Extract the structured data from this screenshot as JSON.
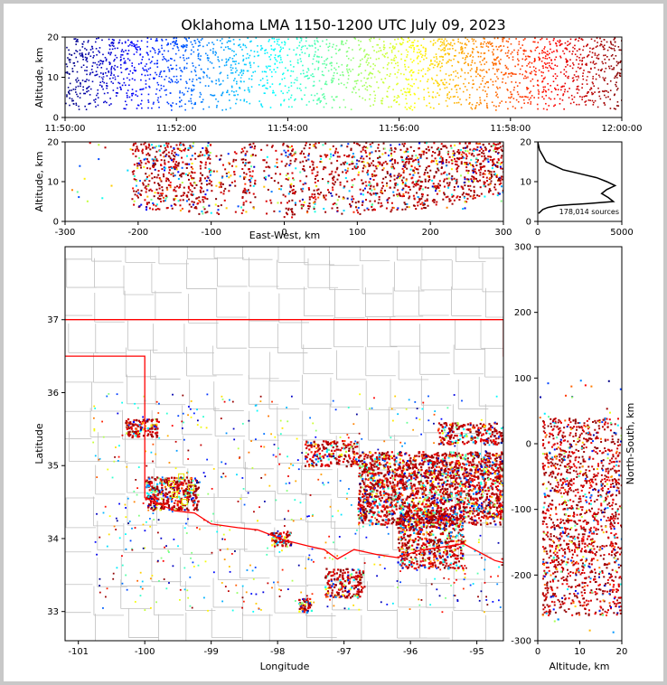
{
  "chart_data": {
    "type": "scatter",
    "title": "Oklahoma LMA 1150-1200 UTC July 09, 2023",
    "colors": {
      "background": "#c8c8c8",
      "jet_low": "#00007f",
      "jet_high": "#7f0000",
      "state_border": "#ff0000",
      "county_border": "#c0c0c0",
      "histogram_line": "#000000"
    },
    "colormap": "jet",
    "time_altitude": {
      "ylabel": "Altitude, km",
      "ylim": [
        0,
        20
      ],
      "yticks": [
        "0",
        "10",
        "20"
      ],
      "xlim": [
        "11:50:00",
        "12:00:00"
      ],
      "xticks": [
        "11:50:00",
        "11:52:00",
        "11:54:00",
        "11:56:00",
        "11:58:00",
        "12:00:00"
      ],
      "density_bins": [
        1,
        1,
        0.85,
        0.9,
        1,
        0.9,
        0.8,
        0.7,
        0.85,
        1,
        0.9,
        0.8,
        0.7,
        0.6,
        0.75,
        0.85,
        0.6,
        0.5,
        0.7,
        0.65,
        0.55,
        0.7,
        0.8,
        0.75,
        0.6,
        0.5,
        0.6,
        0.7,
        0.65,
        0.75,
        0.9,
        0.8,
        0.7,
        1,
        0.95,
        0.85,
        0.9,
        1,
        0.95,
        0.8,
        0.75,
        0.9,
        1,
        0.95,
        0.9,
        0.85,
        1,
        0.95,
        0.9,
        1
      ]
    },
    "east_west_altitude": {
      "xlabel": "East-West, km",
      "ylabel": "Altitude, km",
      "xlim": [
        -300,
        300
      ],
      "xticks": [
        "-300",
        "-200",
        "-100",
        "0",
        "100",
        "200",
        "300"
      ],
      "ylim": [
        0,
        20
      ],
      "yticks": [
        "0",
        "10",
        "20"
      ],
      "clusters": [
        {
          "x": [
            -210,
            -100
          ],
          "z": [
            2,
            20
          ],
          "density": 1.0
        },
        {
          "x": [
            -95,
            -65
          ],
          "z": [
            2,
            18
          ],
          "density": 0.4
        },
        {
          "x": [
            -60,
            -40
          ],
          "z": [
            2,
            20
          ],
          "density": 0.9
        },
        {
          "x": [
            -30,
            0
          ],
          "z": [
            1,
            20
          ],
          "density": 0.3
        },
        {
          "x": [
            0,
            15
          ],
          "z": [
            1,
            20
          ],
          "density": 1.0
        },
        {
          "x": [
            20,
            110
          ],
          "z": [
            2,
            20
          ],
          "density": 0.7
        },
        {
          "x": [
            110,
            300
          ],
          "z": [
            2,
            20
          ],
          "density": 1.0
        }
      ]
    },
    "altitude_histogram": {
      "xlim": [
        0,
        5000
      ],
      "xticks": [
        "0",
        "5000"
      ],
      "ylim": [
        0,
        20
      ],
      "yticks": [
        "0",
        "10",
        "20"
      ],
      "annotation": "178,014 sources",
      "profile": [
        {
          "z": 20,
          "count": 0
        },
        {
          "z": 18,
          "count": 100
        },
        {
          "z": 15,
          "count": 500
        },
        {
          "z": 13,
          "count": 1500
        },
        {
          "z": 12,
          "count": 2500
        },
        {
          "z": 11,
          "count": 3500
        },
        {
          "z": 10,
          "count": 4100
        },
        {
          "z": 9,
          "count": 4600
        },
        {
          "z": 8,
          "count": 4100
        },
        {
          "z": 7,
          "count": 3800
        },
        {
          "z": 6,
          "count": 4200
        },
        {
          "z": 5,
          "count": 4500
        },
        {
          "z": 4.5,
          "count": 3000
        },
        {
          "z": 4,
          "count": 1200
        },
        {
          "z": 3.5,
          "count": 600
        },
        {
          "z": 3,
          "count": 300
        },
        {
          "z": 2,
          "count": 50
        }
      ]
    },
    "plan_view": {
      "xlabel": "Longitude",
      "ylabel": "Latitude",
      "xlim": [
        -101.2,
        -94.6
      ],
      "xticks": [
        "-101",
        "-100",
        "-99",
        "-98",
        "-97",
        "-96",
        "-95"
      ],
      "ylim": [
        32.6,
        38.0
      ],
      "yticks": [
        "33",
        "34",
        "35",
        "36",
        "37"
      ],
      "oklahoma_border": [
        [
          -103.0,
          37.0
        ],
        [
          -94.6,
          37.0
        ],
        [
          -94.6,
          36.5
        ],
        [
          -94.43,
          35.4
        ],
        [
          -94.48,
          33.64
        ],
        [
          -94.73,
          33.7
        ],
        [
          -95.2,
          33.93
        ],
        [
          -95.55,
          33.88
        ],
        [
          -95.85,
          33.84
        ],
        [
          -96.2,
          33.74
        ],
        [
          -96.5,
          33.78
        ],
        [
          -96.85,
          33.85
        ],
        [
          -97.1,
          33.72
        ],
        [
          -97.3,
          33.85
        ],
        [
          -97.55,
          33.9
        ],
        [
          -97.9,
          33.98
        ],
        [
          -98.3,
          34.12
        ],
        [
          -98.6,
          34.15
        ],
        [
          -99.0,
          34.2
        ],
        [
          -99.25,
          34.35
        ],
        [
          -99.55,
          34.38
        ],
        [
          -99.85,
          34.5
        ],
        [
          -100.0,
          34.56
        ],
        [
          -100.0,
          36.5
        ],
        [
          -103.0,
          36.5
        ]
      ],
      "clusters": [
        {
          "lon": [
            -100.3,
            -99.8
          ],
          "lat": [
            35.4,
            35.65
          ],
          "density": 0.8
        },
        {
          "lon": [
            -100.0,
            -99.2
          ],
          "lat": [
            34.4,
            34.85
          ],
          "density": 1.0
        },
        {
          "lon": [
            -97.6,
            -96.8
          ],
          "lat": [
            35.0,
            35.35
          ],
          "density": 0.6
        },
        {
          "lon": [
            -96.8,
            -94.6
          ],
          "lat": [
            34.2,
            35.2
          ],
          "density": 1.0
        },
        {
          "lon": [
            -96.2,
            -95.2
          ],
          "lat": [
            33.6,
            34.4
          ],
          "density": 0.8
        },
        {
          "lon": [
            -95.6,
            -94.6
          ],
          "lat": [
            35.3,
            35.6
          ],
          "density": 0.7
        },
        {
          "lon": [
            -97.3,
            -96.7
          ],
          "lat": [
            33.2,
            33.6
          ],
          "density": 0.7
        },
        {
          "lon": [
            -98.1,
            -97.8
          ],
          "lat": [
            33.9,
            34.1
          ],
          "density": 0.7
        },
        {
          "lon": [
            -97.7,
            -97.5
          ],
          "lat": [
            33.0,
            33.2
          ],
          "density": 0.6
        }
      ]
    },
    "north_south_altitude": {
      "xlabel": "Altitude, km",
      "ylabel": "North-South, km",
      "xlim": [
        0,
        20
      ],
      "xticks": [
        "0",
        "10",
        "20"
      ],
      "ylim": [
        -300,
        300
      ],
      "yticks": [
        "-300",
        "-200",
        "-100",
        "0",
        "100",
        "200",
        "300"
      ],
      "clusters": [
        {
          "ns": [
            -260,
            40
          ],
          "z": [
            1,
            20
          ],
          "density": 1.0
        }
      ]
    }
  }
}
